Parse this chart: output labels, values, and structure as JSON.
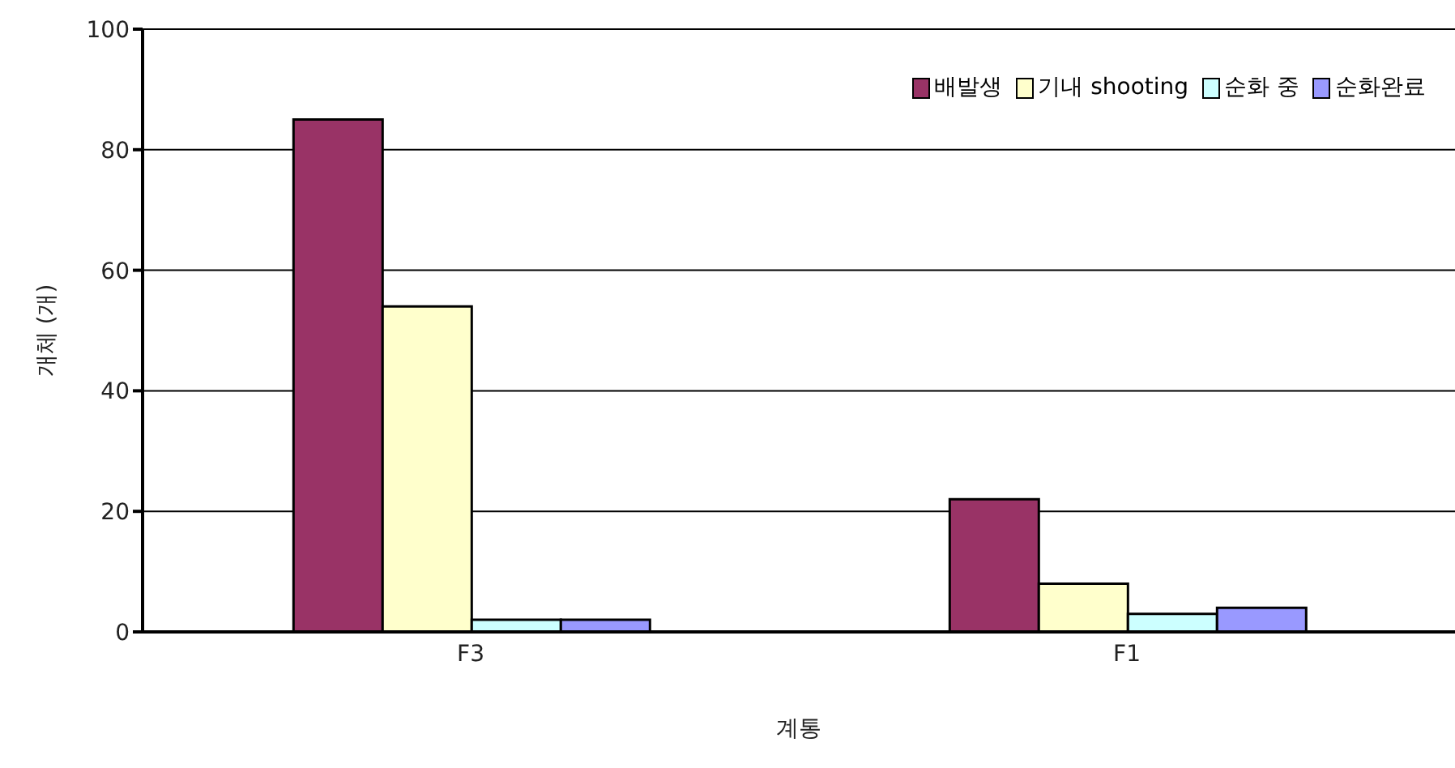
{
  "chart_data": {
    "type": "bar",
    "xlabel": "계통",
    "ylabel": "개체 (개)",
    "categories": [
      "F3",
      "F1"
    ],
    "series": [
      {
        "name": "배발생",
        "color": "#993366",
        "values": [
          85,
          22
        ]
      },
      {
        "name": "기내 shooting",
        "color": "#ffffcc",
        "values": [
          54,
          8
        ]
      },
      {
        "name": "순화 중",
        "color": "#ccffff",
        "values": [
          2,
          3
        ]
      },
      {
        "name": "순화완료",
        "color": "#9999ff",
        "values": [
          2,
          4
        ]
      }
    ],
    "ylim": [
      0,
      100
    ],
    "yticks": [
      0,
      20,
      40,
      60,
      80,
      100
    ],
    "grid": "y",
    "legend": "top right"
  }
}
